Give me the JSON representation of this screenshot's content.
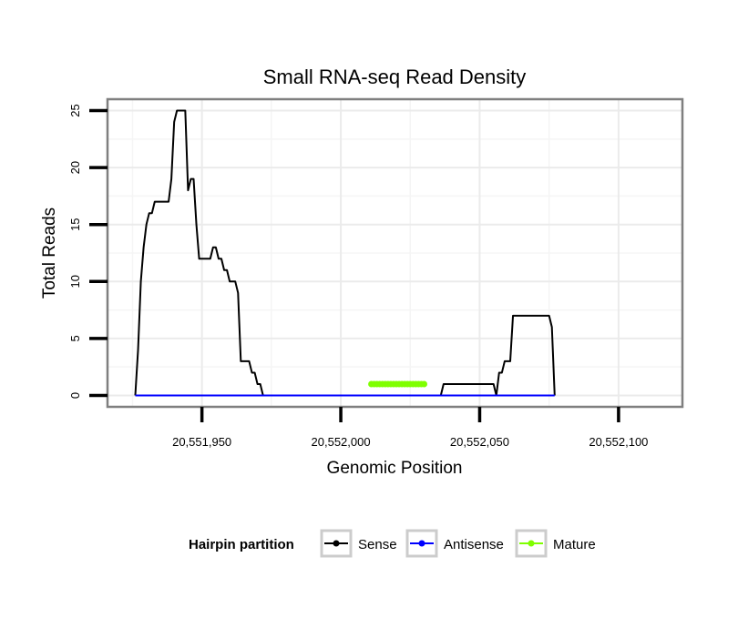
{
  "chart_data": {
    "type": "line",
    "title": "Small RNA-seq Read Density",
    "xlabel": "Genomic Position",
    "ylabel": "Total Reads",
    "xlim": [
      20551916,
      20552123
    ],
    "ylim": [
      -1,
      26
    ],
    "x_ticks": [
      20551950,
      20552000,
      20552050,
      20552100
    ],
    "x_tick_labels": [
      "20,551,950",
      "20,552,000",
      "20,552,050",
      "20,552,100"
    ],
    "y_ticks": [
      0,
      5,
      10,
      15,
      20,
      25
    ],
    "y_tick_labels": [
      "0",
      "5",
      "10",
      "15",
      "20",
      "25"
    ],
    "grid": true,
    "legend": {
      "title": "Hairpin partition",
      "position": "bottom",
      "entries": [
        "Sense",
        "Antisense",
        "Mature"
      ]
    },
    "series": [
      {
        "name": "Sense",
        "color": "#000000",
        "points": [
          [
            20551926,
            0
          ],
          [
            20551927,
            4
          ],
          [
            20551928,
            10
          ],
          [
            20551929,
            13
          ],
          [
            20551930,
            15
          ],
          [
            20551931,
            16
          ],
          [
            20551932,
            16
          ],
          [
            20551933,
            17
          ],
          [
            20551934,
            17
          ],
          [
            20551935,
            17
          ],
          [
            20551936,
            17
          ],
          [
            20551937,
            17
          ],
          [
            20551938,
            17
          ],
          [
            20551939,
            19
          ],
          [
            20551940,
            24
          ],
          [
            20551941,
            25
          ],
          [
            20551942,
            25
          ],
          [
            20551943,
            25
          ],
          [
            20551944,
            25
          ],
          [
            20551945,
            18
          ],
          [
            20551946,
            19
          ],
          [
            20551947,
            19
          ],
          [
            20551948,
            15
          ],
          [
            20551949,
            12
          ],
          [
            20551950,
            12
          ],
          [
            20551951,
            12
          ],
          [
            20551952,
            12
          ],
          [
            20551953,
            12
          ],
          [
            20551954,
            13
          ],
          [
            20551955,
            13
          ],
          [
            20551956,
            12
          ],
          [
            20551957,
            12
          ],
          [
            20551958,
            11
          ],
          [
            20551959,
            11
          ],
          [
            20551960,
            10
          ],
          [
            20551961,
            10
          ],
          [
            20551962,
            10
          ],
          [
            20551963,
            9
          ],
          [
            20551964,
            3
          ],
          [
            20551965,
            3
          ],
          [
            20551966,
            3
          ],
          [
            20551967,
            3
          ],
          [
            20551968,
            2
          ],
          [
            20551969,
            2
          ],
          [
            20551970,
            1
          ],
          [
            20551971,
            1
          ],
          [
            20551972,
            0
          ],
          [
            20552036,
            0
          ],
          [
            20552037,
            1
          ],
          [
            20552038,
            1
          ],
          [
            20552055,
            1
          ],
          [
            20552056,
            0
          ],
          [
            20552057,
            2
          ],
          [
            20552058,
            2
          ],
          [
            20552059,
            3
          ],
          [
            20552060,
            3
          ],
          [
            20552061,
            3
          ],
          [
            20552062,
            7
          ],
          [
            20552075,
            7
          ],
          [
            20552076,
            6
          ],
          [
            20552077,
            0
          ]
        ]
      },
      {
        "name": "Antisense",
        "color": "#0000ff",
        "points": [
          [
            20551926,
            0
          ],
          [
            20552077,
            0
          ]
        ]
      },
      {
        "name": "Mature",
        "color": "#7fff00",
        "points": [
          [
            20552011,
            1
          ],
          [
            20552012,
            1
          ],
          [
            20552013,
            1
          ],
          [
            20552014,
            1
          ],
          [
            20552015,
            1
          ],
          [
            20552016,
            1
          ],
          [
            20552017,
            1
          ],
          [
            20552018,
            1
          ],
          [
            20552019,
            1
          ],
          [
            20552020,
            1
          ],
          [
            20552021,
            1
          ],
          [
            20552022,
            1
          ],
          [
            20552023,
            1
          ],
          [
            20552024,
            1
          ],
          [
            20552025,
            1
          ],
          [
            20552026,
            1
          ],
          [
            20552027,
            1
          ],
          [
            20552028,
            1
          ],
          [
            20552029,
            1
          ],
          [
            20552030,
            1
          ]
        ],
        "draw_points": true
      }
    ]
  }
}
